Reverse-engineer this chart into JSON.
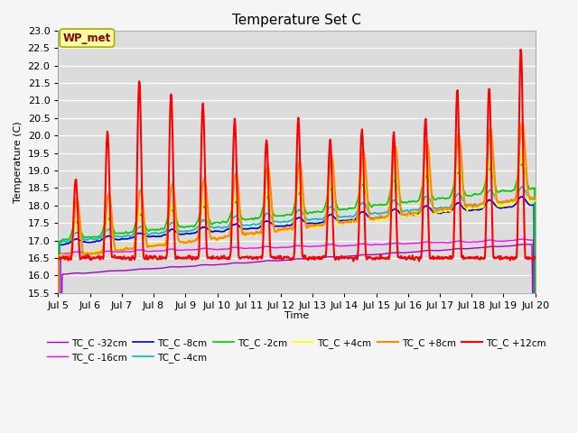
{
  "title": "Temperature Set C",
  "xlabel": "Time",
  "ylabel": "Temperature (C)",
  "ylim": [
    15.5,
    23.0
  ],
  "xlim": [
    5,
    20
  ],
  "x_ticks": [
    5,
    6,
    7,
    8,
    9,
    10,
    11,
    12,
    13,
    14,
    15,
    16,
    17,
    18,
    19,
    20
  ],
  "x_tick_labels": [
    "Jul 5",
    "Jul 6",
    "Jul 7",
    "Jul 8",
    "Jul 9",
    "Jul 10",
    "Jul 11",
    "Jul 12",
    "Jul 13",
    "Jul 14",
    "Jul 15",
    "Jul 16",
    "Jul 17",
    "Jul 18",
    "Jul 19",
    "Jul 20"
  ],
  "y_ticks": [
    15.5,
    16.0,
    16.5,
    17.0,
    17.5,
    18.0,
    18.5,
    19.0,
    19.5,
    20.0,
    20.5,
    21.0,
    21.5,
    22.0,
    22.5,
    23.0
  ],
  "annotation_text": "WP_met",
  "annotation_color": "#8B0000",
  "annotation_bg": "#FFFFA0",
  "annotation_edge": "#AAAA00",
  "bg_color": "#DCDCDC",
  "fig_bg": "#F5F5F5",
  "grid_color": "#FFFFFF",
  "series_colors": {
    "TC_C -32cm": "#AA00CC",
    "TC_C -16cm": "#FF00FF",
    "TC_C -8cm": "#0000CC",
    "TC_C -4cm": "#00BBCC",
    "TC_C -2cm": "#00CC00",
    "TC_C +4cm": "#FFFF00",
    "TC_C +8cm": "#FF8800",
    "TC_C +12cm": "#FF0000"
  },
  "legend_order": [
    "TC_C -32cm",
    "TC_C -16cm",
    "TC_C -8cm",
    "TC_C -4cm",
    "TC_C -2cm",
    "TC_C +4cm",
    "TC_C +8cm",
    "TC_C +12cm"
  ],
  "title_fontsize": 11,
  "label_fontsize": 8,
  "tick_fontsize": 8,
  "legend_fontsize": 7.5
}
